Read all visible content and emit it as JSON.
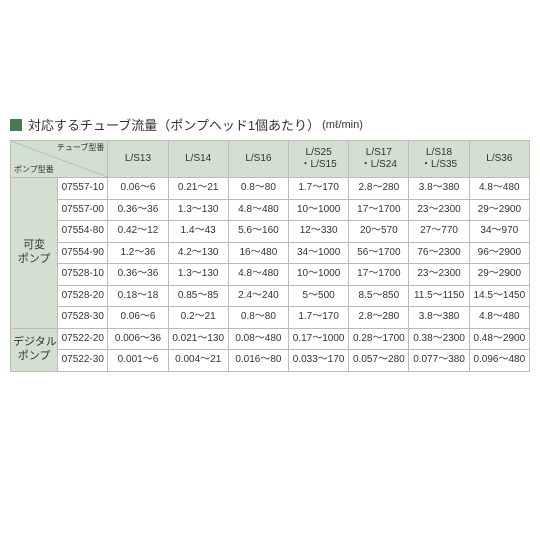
{
  "title": "対応するチューブ流量（ポンプヘッド1個あたり）",
  "unit": "(mℓ/min)",
  "corner": {
    "top": "チューブ型番",
    "bottom": "ポンプ型番"
  },
  "columns": [
    "L/S13",
    "L/S14",
    "L/S16",
    "L/S25\n・L/S15",
    "L/S17\n・L/S24",
    "L/S18\n・L/S35",
    "L/S36"
  ],
  "groups": [
    {
      "label": "可変\nポンプ",
      "rows": [
        {
          "model": "07557-10",
          "cells": [
            "0.06～6",
            "0.21～21",
            "0.8～80",
            "1.7～170",
            "2.8～280",
            "3.8～380",
            "4.8～480"
          ]
        },
        {
          "model": "07557-00",
          "cells": [
            "0.36～36",
            "1.3～130",
            "4.8～480",
            "10～1000",
            "17～1700",
            "23～2300",
            "29～2900"
          ]
        },
        {
          "model": "07554-80",
          "cells": [
            "0.42～12",
            "1.4～43",
            "5.6～160",
            "12～330",
            "20～570",
            "27～770",
            "34～970"
          ]
        },
        {
          "model": "07554-90",
          "cells": [
            "1.2～36",
            "4.2～130",
            "16～480",
            "34～1000",
            "56～1700",
            "76～2300",
            "96～2900"
          ]
        },
        {
          "model": "07528-10",
          "cells": [
            "0.36～36",
            "1.3～130",
            "4.8～480",
            "10～1000",
            "17～1700",
            "23～2300",
            "29～2900"
          ]
        },
        {
          "model": "07528-20",
          "cells": [
            "0.18～18",
            "0.85～85",
            "2.4～240",
            "5～500",
            "8.5～850",
            "11.5～1150",
            "14.5～1450"
          ]
        },
        {
          "model": "07528-30",
          "cells": [
            "0.06～6",
            "0.2～21",
            "0.8～80",
            "1.7～170",
            "2.8～280",
            "3.8～380",
            "4.8～480"
          ]
        }
      ]
    },
    {
      "label": "デジタル\nポンプ",
      "rows": [
        {
          "model": "07522-20",
          "cells": [
            "0.006～36",
            "0.021～130",
            "0.08～480",
            "0.17～1000",
            "0.28～1700",
            "0.38～2300",
            "0.48～2900"
          ]
        },
        {
          "model": "07522-30",
          "cells": [
            "0.001～6",
            "0.004～21",
            "0.016～80",
            "0.033～170",
            "0.057～280",
            "0.077～380",
            "0.096～480"
          ]
        }
      ]
    }
  ],
  "colors": {
    "header_bg": "#d3e0cf",
    "border": "#bbbbbb",
    "square": "#4a7a4f",
    "text": "#333333",
    "background": "#ffffff"
  }
}
